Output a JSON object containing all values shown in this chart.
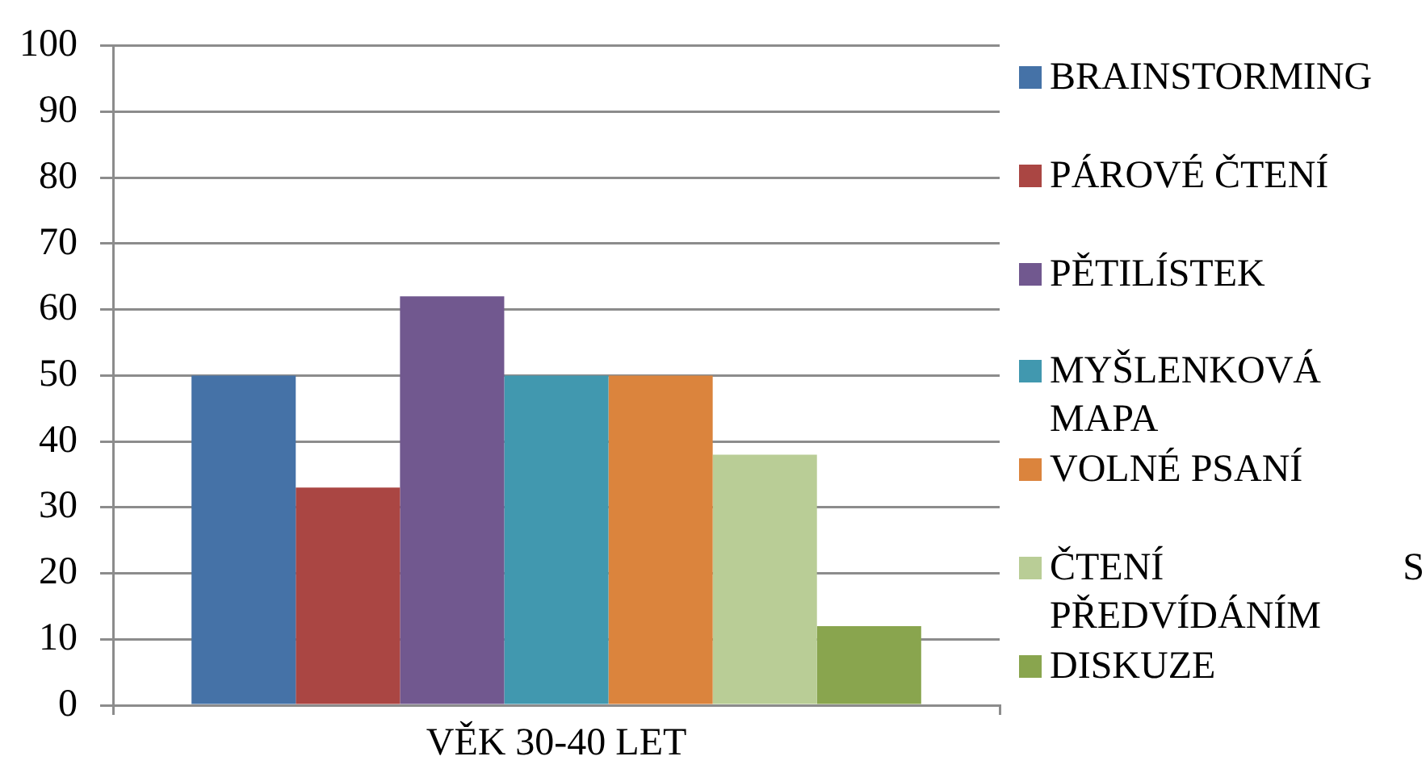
{
  "chart_data": {
    "type": "bar",
    "categories": [
      "VĚK 30-40 LET"
    ],
    "series": [
      {
        "name": "BRAINSTORMING",
        "color": "#4572a7",
        "values": [
          50
        ]
      },
      {
        "name": "PÁROVÉ ČTENÍ",
        "color": "#aa4643",
        "values": [
          33
        ]
      },
      {
        "name": "PĚTILÍSTEK",
        "color": "#71588f",
        "values": [
          62
        ]
      },
      {
        "name": "MYŠLENKOVÁ MAPA",
        "color": "#4198af",
        "values": [
          50
        ]
      },
      {
        "name": "VOLNÉ PSANÍ",
        "color": "#db843d",
        "values": [
          50
        ]
      },
      {
        "name": "ČTENÍ S PŘEDVÍDÁNÍM",
        "color": "#b9cd96",
        "values": [
          38
        ]
      },
      {
        "name": "DISKUZE",
        "color": "#89a54e",
        "values": [
          12
        ]
      }
    ],
    "ylim": [
      0,
      100
    ],
    "yticks": [
      0,
      10,
      20,
      30,
      40,
      50,
      60,
      70,
      80,
      90,
      100
    ],
    "grid": "y",
    "legend": "right"
  }
}
